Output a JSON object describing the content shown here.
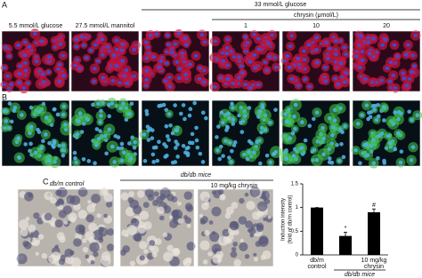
{
  "panels": {
    "A": {
      "label": "A",
      "columns": [
        "5.5 mmol/L glucose",
        "27.5 mmol/L mannitol"
      ],
      "group": "33 mmol/L glucose",
      "subgroup": "chrysin (μmol/L)",
      "doses": [
        "1",
        "10",
        "20"
      ]
    },
    "B": {
      "label": "B"
    },
    "C": {
      "label": "C",
      "control": "db/m control",
      "group": "db/db mice",
      "treatment": "10 mg/kg chrysin"
    }
  },
  "chart_data": {
    "type": "bar",
    "y_label": [
      "Induction intensity",
      "(fold of db/m control)"
    ],
    "categories": [
      "db/m control",
      null,
      "10 mg/kg chrysin"
    ],
    "group_label": "db/db mice",
    "values": [
      1,
      0.4,
      0.9
    ],
    "errors": [
      0,
      0.08,
      0.07
    ],
    "bar_annotations": [
      null,
      "*",
      "#"
    ],
    "color": "#000000",
    "ylim": [
      0,
      1.5
    ],
    "yticks": [
      0,
      0.5,
      1,
      1.5
    ]
  }
}
